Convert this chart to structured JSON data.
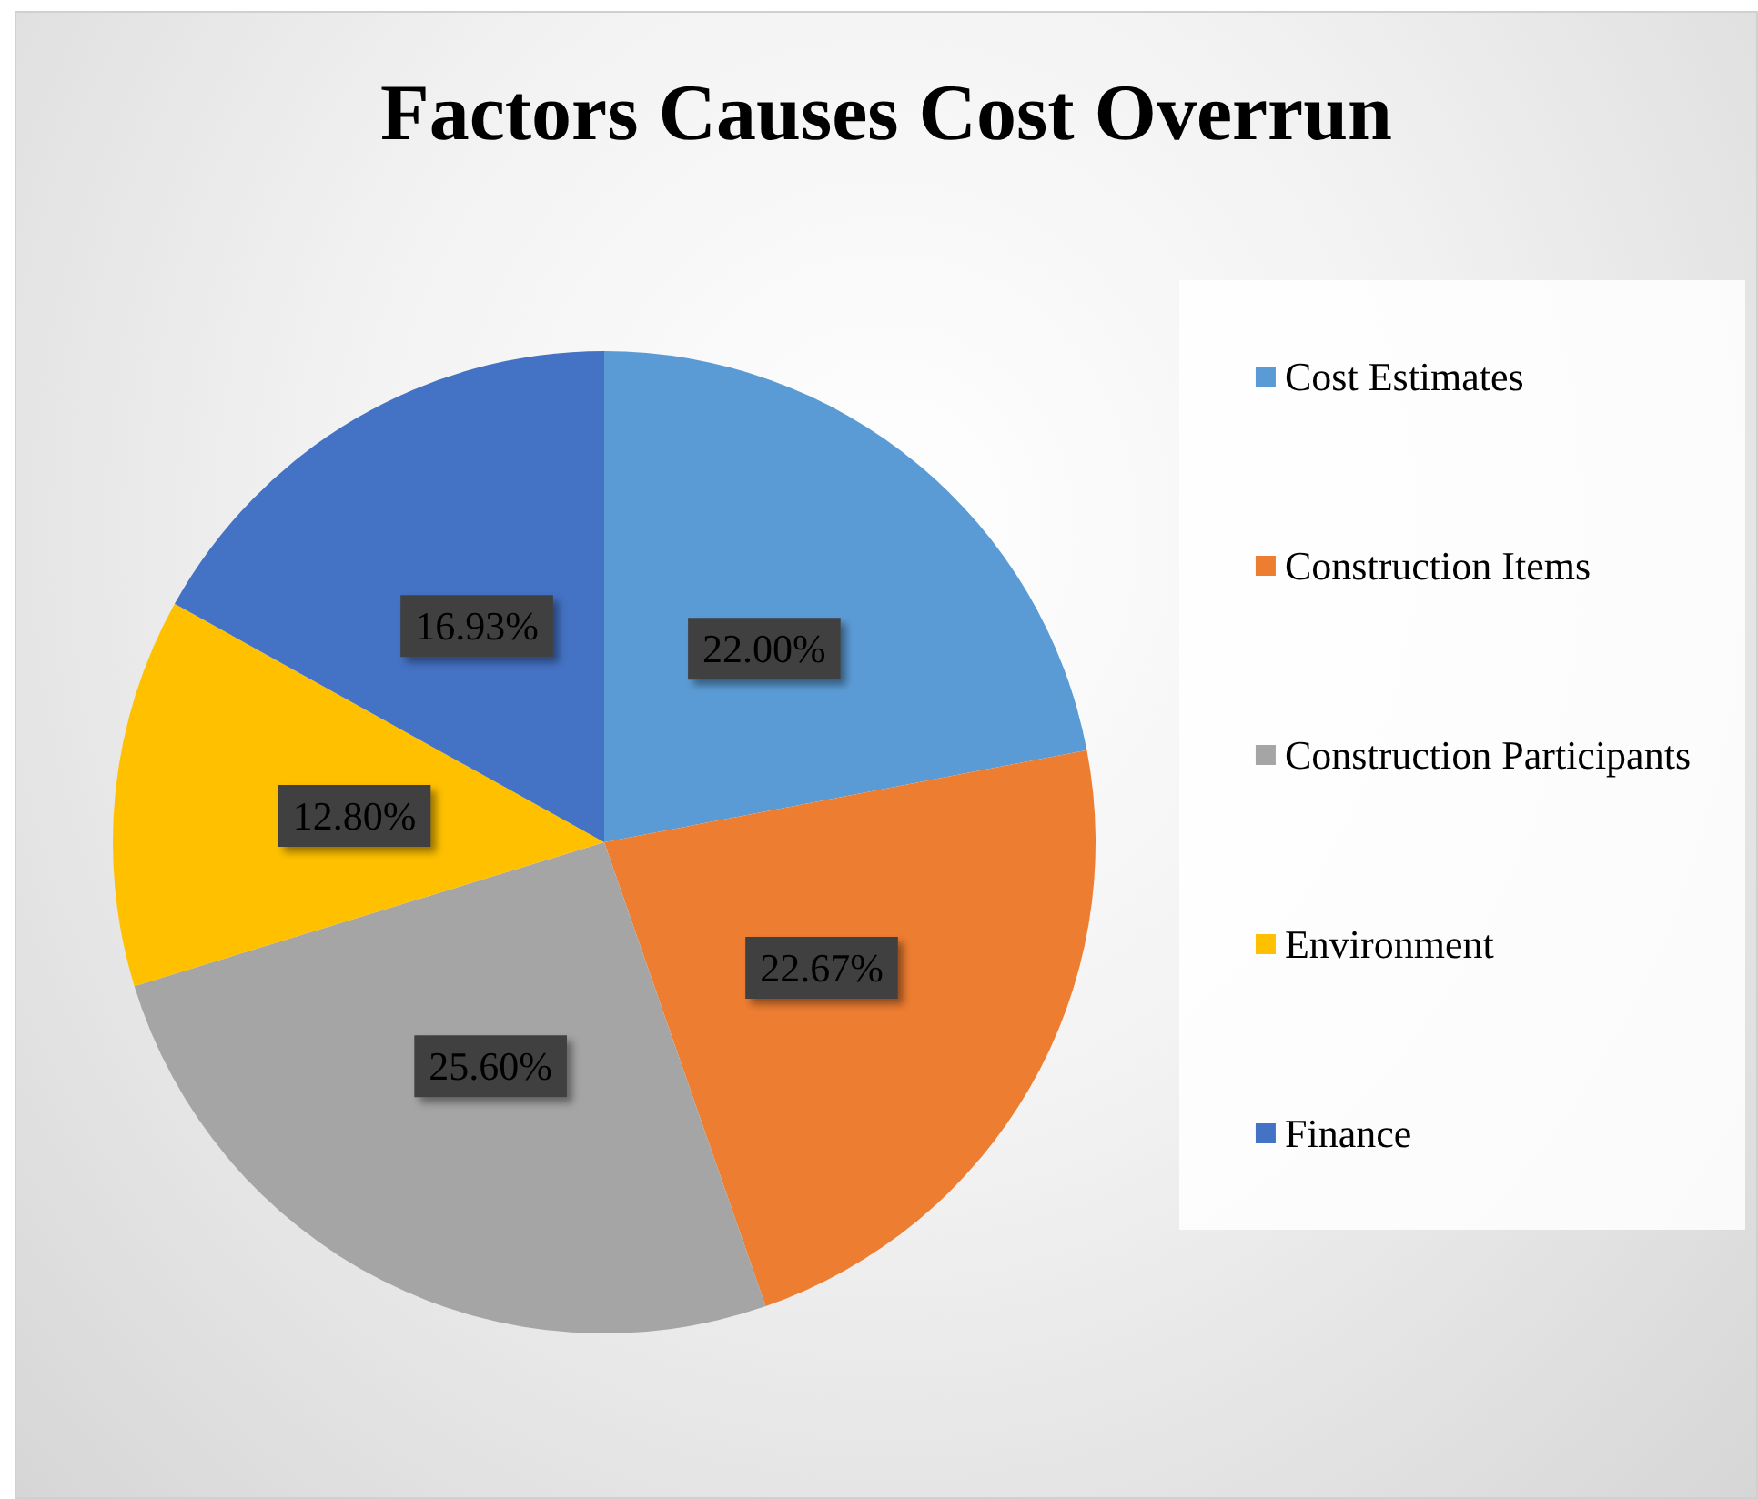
{
  "chart_data": {
    "type": "pie",
    "title": "Factors Causes Cost Overrun",
    "categories": [
      "Cost Estimates",
      "Construction Items",
      "Construction Participants",
      "Environment",
      "Finance"
    ],
    "values": [
      22.0,
      22.67,
      25.6,
      12.8,
      16.93
    ],
    "value_labels": [
      "22.00%",
      "22.67%",
      "25.60%",
      "12.80%",
      "16.93%"
    ],
    "colors": [
      "#5b9bd5",
      "#ed7d31",
      "#a5a5a5",
      "#ffc000",
      "#4472c4"
    ],
    "legend": "right"
  }
}
